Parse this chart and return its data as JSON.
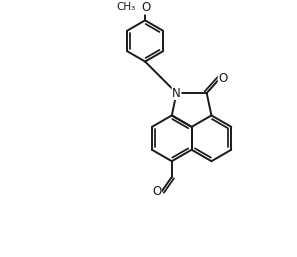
{
  "background_color": "#ffffff",
  "line_color": "#1a1a1a",
  "line_width": 1.4,
  "figsize": [
    2.97,
    2.57
  ],
  "dpi": 100,
  "xlim": [
    0,
    10
  ],
  "ylim": [
    0,
    8.6
  ]
}
